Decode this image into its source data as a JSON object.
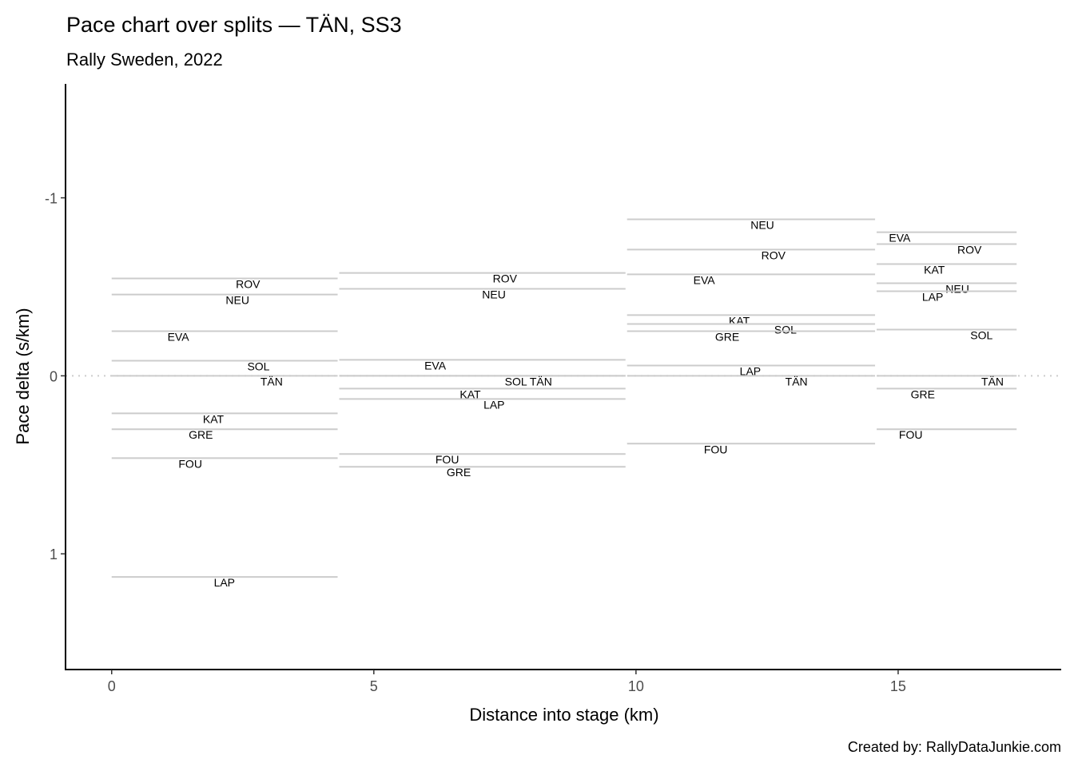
{
  "chart_data": {
    "type": "line",
    "title": "Pace chart over splits — TÄN, SS3",
    "subtitle": "Rally Sweden, 2022",
    "xlabel": "Distance into stage (km)",
    "ylabel": "Pace delta (s/km)",
    "caption": "Created by: RallyDataJunkie.com",
    "xlim": [
      -0.88,
      18.11
    ],
    "ylim": [
      -1.64,
      1.65
    ],
    "y_reversed": true,
    "x_ticks": [
      0,
      5,
      10,
      15
    ],
    "y_ticks": [
      -1,
      0,
      1
    ],
    "grid": false,
    "reference_line": {
      "y": 0,
      "style": "dotted",
      "color": "#cccccc"
    },
    "segment_color": "#cccccc",
    "segments": [
      {
        "start": 0,
        "end": 4.31,
        "entries": [
          {
            "driver": "ROV",
            "value": -0.547,
            "label_x": 2.6
          },
          {
            "driver": "NEU",
            "value": -0.457,
            "label_x": 2.4
          },
          {
            "driver": "EVA",
            "value": -0.251,
            "label_x": 1.27
          },
          {
            "driver": "SOL",
            "value": -0.085,
            "label_x": 2.8
          },
          {
            "driver": "TÄN",
            "value": 0,
            "label_x": 3.05
          },
          {
            "driver": "KAT",
            "value": 0.211,
            "label_x": 1.94
          },
          {
            "driver": "GRE",
            "value": 0.3,
            "label_x": 1.7
          },
          {
            "driver": "FOU",
            "value": 0.462,
            "label_x": 1.5
          },
          {
            "driver": "LAP",
            "value": 1.13,
            "label_x": 2.15
          }
        ]
      },
      {
        "start": 4.34,
        "end": 9.8,
        "entries": [
          {
            "driver": "ROV",
            "value": -0.578,
            "label_x": 7.5
          },
          {
            "driver": "NEU",
            "value": -0.489,
            "label_x": 7.29
          },
          {
            "driver": "EVA",
            "value": -0.09,
            "label_x": 6.17
          },
          {
            "driver": "SOL",
            "value": 0,
            "label_x": 7.71
          },
          {
            "driver": "TÄN",
            "value": 0,
            "label_x": 7.94
          },
          {
            "driver": "KAT",
            "value": 0.072,
            "label_x": 6.84
          },
          {
            "driver": "LAP",
            "value": 0.13,
            "label_x": 7.06
          },
          {
            "driver": "FOU",
            "value": 0.439,
            "label_x": 6.4
          },
          {
            "driver": "GRE",
            "value": 0.511,
            "label_x": 6.62
          }
        ]
      },
      {
        "start": 9.83,
        "end": 14.56,
        "entries": [
          {
            "driver": "NEU",
            "value": -0.879,
            "label_x": 12.41
          },
          {
            "driver": "ROV",
            "value": -0.709,
            "label_x": 12.62
          },
          {
            "driver": "EVA",
            "value": -0.57,
            "label_x": 11.3
          },
          {
            "driver": "KAT",
            "value": -0.341,
            "label_x": 11.97
          },
          {
            "driver": "SOL",
            "value": -0.291,
            "label_x": 12.85
          },
          {
            "driver": "GRE",
            "value": -0.251,
            "label_x": 11.74
          },
          {
            "driver": "LAP",
            "value": -0.058,
            "label_x": 12.18
          },
          {
            "driver": "TÄN",
            "value": 0,
            "label_x": 13.06
          },
          {
            "driver": "FOU",
            "value": 0.381,
            "label_x": 11.52
          }
        ]
      },
      {
        "start": 14.59,
        "end": 17.26,
        "entries": [
          {
            "driver": "EVA",
            "value": -0.807,
            "label_x": 15.03
          },
          {
            "driver": "ROV",
            "value": -0.74,
            "label_x": 16.36
          },
          {
            "driver": "KAT",
            "value": -0.628,
            "label_x": 15.69
          },
          {
            "driver": "NEU",
            "value": -0.52,
            "label_x": 16.13
          },
          {
            "driver": "LAP",
            "value": -0.475,
            "label_x": 15.91
          },
          {
            "driver": "SOL",
            "value": -0.26,
            "label_x": 16.59
          },
          {
            "driver": "TÄN",
            "value": 0,
            "label_x": 16.8
          },
          {
            "driver": "GRE",
            "value": 0.072,
            "label_x": 15.47
          },
          {
            "driver": "FOU",
            "value": 0.3,
            "label_x": 15.24
          }
        ]
      }
    ]
  }
}
